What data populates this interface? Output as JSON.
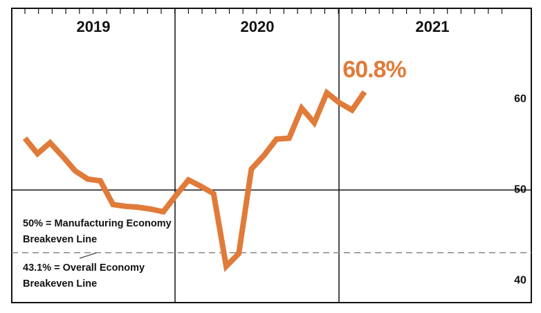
{
  "chart_data": {
    "type": "line",
    "sections": [
      "2019",
      "2020",
      "2021"
    ],
    "categories": [
      null,
      null,
      null,
      null,
      null,
      null,
      null,
      null,
      null,
      null,
      null,
      null,
      null,
      null,
      null,
      null,
      null,
      null,
      null,
      null,
      null,
      null,
      null,
      null,
      null,
      null,
      null,
      null
    ],
    "series": [
      {
        "color": "#e07b39",
        "values": [
          55.7,
          54.0,
          55.2,
          53.7,
          52.1,
          51.2,
          51.0,
          48.4,
          48.2,
          48.1,
          47.9,
          47.6,
          49.4,
          51.1,
          50.4,
          49.6,
          41.6,
          43.0,
          52.3,
          53.8,
          55.6,
          55.7,
          59.0,
          57.4,
          60.7,
          59.6,
          58.8,
          60.8
        ],
        "value_labels": [
          null,
          null,
          null,
          null,
          null,
          null,
          null,
          null,
          null,
          null,
          null,
          null,
          null,
          null,
          null,
          null,
          null,
          null,
          null,
          null,
          null,
          null,
          null,
          null,
          null,
          null,
          null,
          "60.8%"
        ]
      }
    ],
    "reference_lines": [
      {
        "value": 50,
        "style": "solid",
        "label": [
          "50% = Manufacturing Economy",
          "Breakeven Line"
        ]
      },
      {
        "value": 43.1,
        "style": "dashed",
        "label": [
          "43.1% = Overall Economy",
          "Breakeven Line"
        ]
      }
    ],
    "ylim": [
      37.6,
      70
    ],
    "yticks": [
      40,
      50,
      60
    ],
    "grid": false
  }
}
